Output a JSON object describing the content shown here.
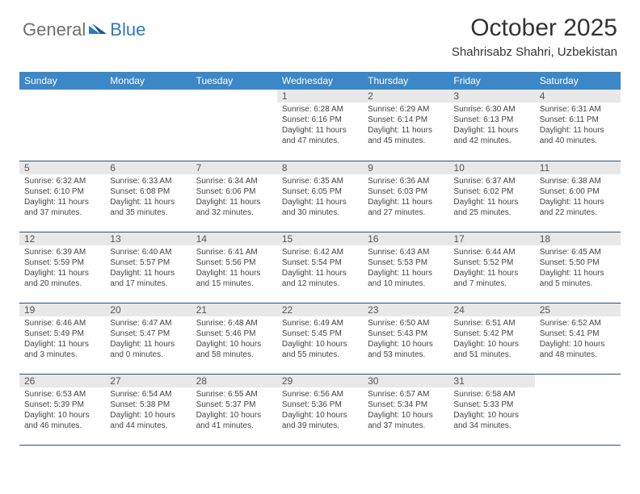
{
  "logo": {
    "part1": "General",
    "part2": "Blue"
  },
  "title": "October 2025",
  "location": "Shahrisabz Shahri, Uzbekistan",
  "colors": {
    "header_bg": "#3c87c7",
    "header_text": "#ffffff",
    "daynum_bg": "#e8e8e8",
    "border": "#29527a",
    "logo_gray": "#6d6e71",
    "logo_blue": "#2f78bf"
  },
  "day_labels": [
    "Sunday",
    "Monday",
    "Tuesday",
    "Wednesday",
    "Thursday",
    "Friday",
    "Saturday"
  ],
  "weeks": [
    [
      {
        "n": "",
        "sr": "",
        "ss": "",
        "dl": ""
      },
      {
        "n": "",
        "sr": "",
        "ss": "",
        "dl": ""
      },
      {
        "n": "",
        "sr": "",
        "ss": "",
        "dl": ""
      },
      {
        "n": "1",
        "sr": "6:28 AM",
        "ss": "6:16 PM",
        "dl": "11 hours and 47 minutes."
      },
      {
        "n": "2",
        "sr": "6:29 AM",
        "ss": "6:14 PM",
        "dl": "11 hours and 45 minutes."
      },
      {
        "n": "3",
        "sr": "6:30 AM",
        "ss": "6:13 PM",
        "dl": "11 hours and 42 minutes."
      },
      {
        "n": "4",
        "sr": "6:31 AM",
        "ss": "6:11 PM",
        "dl": "11 hours and 40 minutes."
      }
    ],
    [
      {
        "n": "5",
        "sr": "6:32 AM",
        "ss": "6:10 PM",
        "dl": "11 hours and 37 minutes."
      },
      {
        "n": "6",
        "sr": "6:33 AM",
        "ss": "6:08 PM",
        "dl": "11 hours and 35 minutes."
      },
      {
        "n": "7",
        "sr": "6:34 AM",
        "ss": "6:06 PM",
        "dl": "11 hours and 32 minutes."
      },
      {
        "n": "8",
        "sr": "6:35 AM",
        "ss": "6:05 PM",
        "dl": "11 hours and 30 minutes."
      },
      {
        "n": "9",
        "sr": "6:36 AM",
        "ss": "6:03 PM",
        "dl": "11 hours and 27 minutes."
      },
      {
        "n": "10",
        "sr": "6:37 AM",
        "ss": "6:02 PM",
        "dl": "11 hours and 25 minutes."
      },
      {
        "n": "11",
        "sr": "6:38 AM",
        "ss": "6:00 PM",
        "dl": "11 hours and 22 minutes."
      }
    ],
    [
      {
        "n": "12",
        "sr": "6:39 AM",
        "ss": "5:59 PM",
        "dl": "11 hours and 20 minutes."
      },
      {
        "n": "13",
        "sr": "6:40 AM",
        "ss": "5:57 PM",
        "dl": "11 hours and 17 minutes."
      },
      {
        "n": "14",
        "sr": "6:41 AM",
        "ss": "5:56 PM",
        "dl": "11 hours and 15 minutes."
      },
      {
        "n": "15",
        "sr": "6:42 AM",
        "ss": "5:54 PM",
        "dl": "11 hours and 12 minutes."
      },
      {
        "n": "16",
        "sr": "6:43 AM",
        "ss": "5:53 PM",
        "dl": "11 hours and 10 minutes."
      },
      {
        "n": "17",
        "sr": "6:44 AM",
        "ss": "5:52 PM",
        "dl": "11 hours and 7 minutes."
      },
      {
        "n": "18",
        "sr": "6:45 AM",
        "ss": "5:50 PM",
        "dl": "11 hours and 5 minutes."
      }
    ],
    [
      {
        "n": "19",
        "sr": "6:46 AM",
        "ss": "5:49 PM",
        "dl": "11 hours and 3 minutes."
      },
      {
        "n": "20",
        "sr": "6:47 AM",
        "ss": "5:47 PM",
        "dl": "11 hours and 0 minutes."
      },
      {
        "n": "21",
        "sr": "6:48 AM",
        "ss": "5:46 PM",
        "dl": "10 hours and 58 minutes."
      },
      {
        "n": "22",
        "sr": "6:49 AM",
        "ss": "5:45 PM",
        "dl": "10 hours and 55 minutes."
      },
      {
        "n": "23",
        "sr": "6:50 AM",
        "ss": "5:43 PM",
        "dl": "10 hours and 53 minutes."
      },
      {
        "n": "24",
        "sr": "6:51 AM",
        "ss": "5:42 PM",
        "dl": "10 hours and 51 minutes."
      },
      {
        "n": "25",
        "sr": "6:52 AM",
        "ss": "5:41 PM",
        "dl": "10 hours and 48 minutes."
      }
    ],
    [
      {
        "n": "26",
        "sr": "6:53 AM",
        "ss": "5:39 PM",
        "dl": "10 hours and 46 minutes."
      },
      {
        "n": "27",
        "sr": "6:54 AM",
        "ss": "5:38 PM",
        "dl": "10 hours and 44 minutes."
      },
      {
        "n": "28",
        "sr": "6:55 AM",
        "ss": "5:37 PM",
        "dl": "10 hours and 41 minutes."
      },
      {
        "n": "29",
        "sr": "6:56 AM",
        "ss": "5:36 PM",
        "dl": "10 hours and 39 minutes."
      },
      {
        "n": "30",
        "sr": "6:57 AM",
        "ss": "5:34 PM",
        "dl": "10 hours and 37 minutes."
      },
      {
        "n": "31",
        "sr": "6:58 AM",
        "ss": "5:33 PM",
        "dl": "10 hours and 34 minutes."
      },
      {
        "n": "",
        "sr": "",
        "ss": "",
        "dl": ""
      }
    ]
  ],
  "labels": {
    "sunrise": "Sunrise:",
    "sunset": "Sunset:",
    "daylight": "Daylight:"
  }
}
